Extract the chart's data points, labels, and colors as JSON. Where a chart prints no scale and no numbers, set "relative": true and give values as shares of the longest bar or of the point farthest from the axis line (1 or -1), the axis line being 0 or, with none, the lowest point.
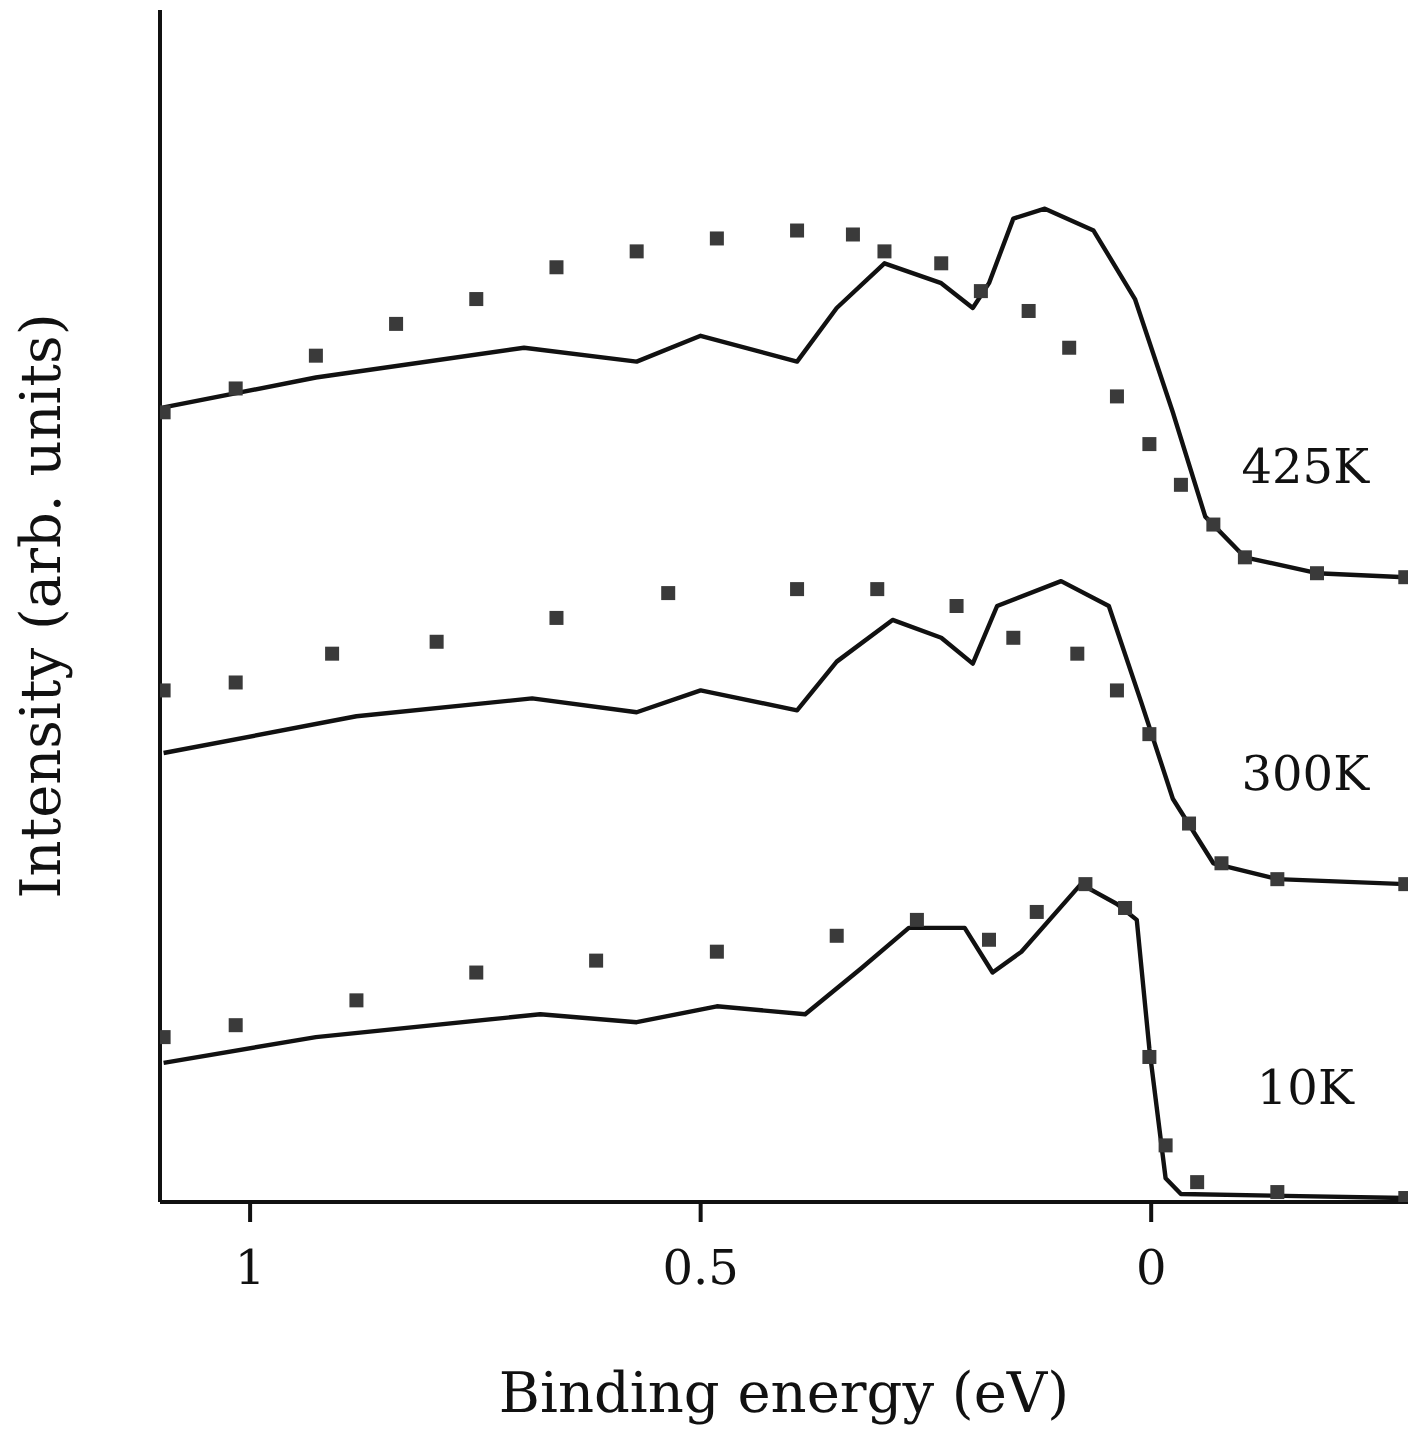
{
  "chart_data": {
    "type": "line",
    "relative": true,
    "xlabel": "Binding energy (eV)",
    "ylabel": "Intensity (arb. units)",
    "xlim": [
      1.1,
      -0.285
    ],
    "xticks": [
      1,
      0.5,
      0
    ],
    "grid": false,
    "legend": false,
    "series": [
      {
        "type": "scatter",
        "marker": "square",
        "color": "#3a3a3a",
        "x": [
          1.096,
          1.016,
          0.927,
          0.838,
          0.749,
          0.66,
          0.571,
          0.482,
          0.393,
          0.331,
          0.296,
          0.233,
          0.189,
          0.136,
          0.091,
          0.038,
          0.002,
          -0.033,
          -0.069,
          -0.104,
          -0.184,
          -0.282
        ],
        "values": [
          0.795,
          0.819,
          0.852,
          0.884,
          0.909,
          0.941,
          0.957,
          0.97,
          0.978,
          0.974,
          0.957,
          0.945,
          0.917,
          0.897,
          0.86,
          0.811,
          0.763,
          0.722,
          0.682,
          0.649,
          0.633,
          0.629
        ]
      },
      {
        "name": "425K",
        "marker": "none",
        "color": "#111111",
        "x": [
          1.096,
          0.927,
          0.696,
          0.571,
          0.5,
          0.393,
          0.349,
          0.296,
          0.233,
          0.198,
          0.18,
          0.153,
          0.118,
          0.064,
          0.018,
          -0.024,
          -0.06,
          -0.104,
          -0.184,
          -0.282
        ],
        "values": [
          0.8,
          0.83,
          0.86,
          0.846,
          0.872,
          0.846,
          0.9,
          0.945,
          0.925,
          0.9,
          0.925,
          0.99,
          1,
          0.978,
          0.909,
          0.795,
          0.69,
          0.649,
          0.633,
          0.629
        ]
      },
      {
        "type": "scatter",
        "marker": "square",
        "color": "#3a3a3a",
        "x": [
          1.096,
          1.016,
          0.909,
          0.793,
          0.66,
          0.536,
          0.393,
          0.304,
          0.216,
          0.153,
          0.082,
          0.038,
          0.002,
          -0.042,
          -0.078,
          -0.14,
          -0.282
        ],
        "values": [
          0.515,
          0.523,
          0.552,
          0.564,
          0.588,
          0.613,
          0.617,
          0.617,
          0.6,
          0.568,
          0.552,
          0.515,
          0.471,
          0.381,
          0.341,
          0.325,
          0.32
        ]
      },
      {
        "name": "300K",
        "marker": "none",
        "color": "#111111",
        "x": [
          1.096,
          0.882,
          0.687,
          0.571,
          0.5,
          0.393,
          0.349,
          0.287,
          0.233,
          0.198,
          0.171,
          0.1,
          0.047,
          0.011,
          -0.024,
          -0.069,
          -0.14,
          -0.282
        ],
        "values": [
          0.452,
          0.489,
          0.507,
          0.493,
          0.515,
          0.495,
          0.544,
          0.586,
          0.568,
          0.542,
          0.6,
          0.625,
          0.6,
          0.503,
          0.406,
          0.341,
          0.325,
          0.32
        ]
      },
      {
        "type": "scatter",
        "marker": "square",
        "color": "#3a3a3a",
        "x": [
          1.096,
          1.016,
          0.882,
          0.749,
          0.616,
          0.482,
          0.349,
          0.26,
          0.18,
          0.127,
          0.073,
          0.029,
          0.002,
          -0.016,
          -0.051,
          -0.14,
          -0.282
        ],
        "values": [
          0.166,
          0.178,
          0.203,
          0.231,
          0.243,
          0.252,
          0.268,
          0.284,
          0.264,
          0.292,
          0.32,
          0.296,
          0.146,
          0.057,
          0.02,
          0.01,
          0.004
        ]
      },
      {
        "name": "10K",
        "marker": "none",
        "color": "#111111",
        "x": [
          1.096,
          0.927,
          0.678,
          0.571,
          0.482,
          0.384,
          0.322,
          0.269,
          0.207,
          0.176,
          0.144,
          0.078,
          0.038,
          0.016,
          0.002,
          -0.016,
          -0.033,
          -0.282
        ],
        "values": [
          0.14,
          0.166,
          0.189,
          0.181,
          0.197,
          0.189,
          0.235,
          0.276,
          0.276,
          0.231,
          0.252,
          0.32,
          0.3,
          0.284,
          0.154,
          0.024,
          0.008,
          0.004
        ]
      }
    ]
  }
}
